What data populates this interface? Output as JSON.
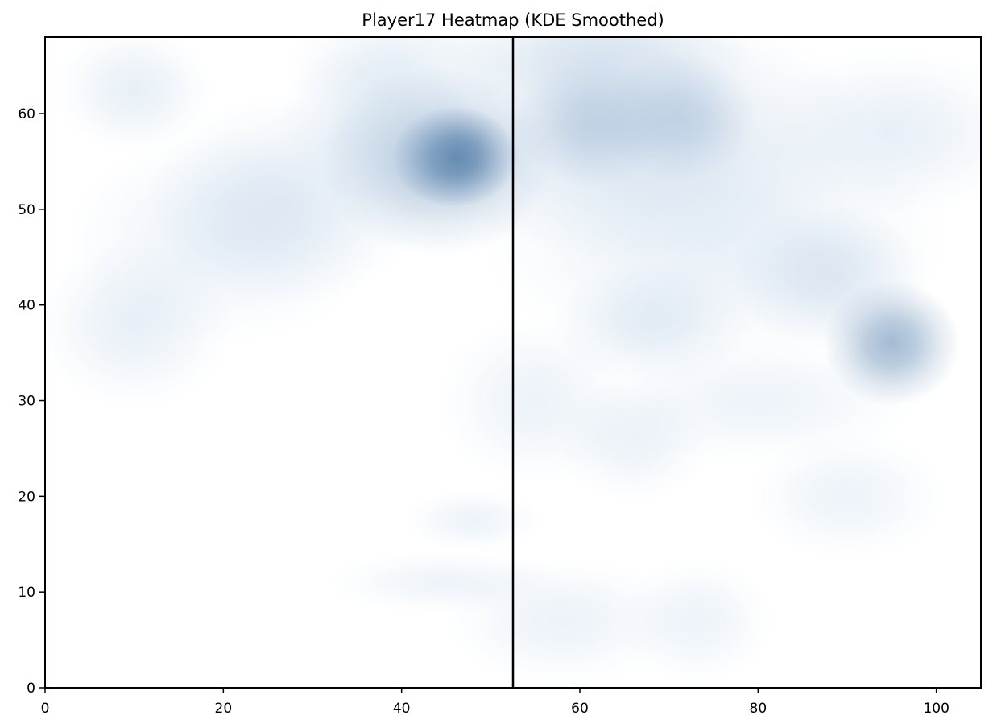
{
  "chart_data": {
    "type": "heatmap",
    "title": "Player17 Heatmap (KDE Smoothed)",
    "xlabel": "",
    "ylabel": "",
    "xlim": [
      0,
      105
    ],
    "ylim": [
      0,
      68
    ],
    "x_ticks": [
      0,
      20,
      40,
      60,
      80,
      100
    ],
    "y_ticks": [
      0,
      10,
      20,
      30,
      40,
      50,
      60
    ],
    "halfway_line_x": 52.5,
    "grid": false,
    "colormap": "Blues",
    "peak_color": "#2a5a8f",
    "low_color": "#f3f8fd",
    "density_hotspots": [
      {
        "x": 46,
        "y": 55.5,
        "sx": 3.2,
        "sy": 2.4,
        "w": 1.0
      },
      {
        "x": 44,
        "y": 55,
        "sx": 6.0,
        "sy": 4.5,
        "w": 0.45
      },
      {
        "x": 95,
        "y": 36,
        "sx": 3.5,
        "sy": 3.0,
        "w": 0.55
      },
      {
        "x": 61.5,
        "y": 59,
        "sx": 4.0,
        "sy": 3.0,
        "w": 0.33
      },
      {
        "x": 71,
        "y": 59.5,
        "sx": 4.0,
        "sy": 3.0,
        "w": 0.33
      },
      {
        "x": 66,
        "y": 58,
        "sx": 12.0,
        "sy": 6.0,
        "w": 0.2
      },
      {
        "x": 62,
        "y": 66,
        "sx": 8.0,
        "sy": 3.0,
        "w": 0.18
      },
      {
        "x": 88,
        "y": 43,
        "sx": 5.0,
        "sy": 3.5,
        "w": 0.16
      },
      {
        "x": 68,
        "y": 38,
        "sx": 5.0,
        "sy": 3.0,
        "w": 0.12
      },
      {
        "x": 27,
        "y": 51,
        "sx": 7.0,
        "sy": 5.0,
        "w": 0.13
      },
      {
        "x": 37,
        "y": 59,
        "sx": 5.0,
        "sy": 4.0,
        "w": 0.12
      },
      {
        "x": 10,
        "y": 62.5,
        "sx": 4.0,
        "sy": 3.0,
        "w": 0.1
      },
      {
        "x": 10,
        "y": 38,
        "sx": 5.0,
        "sy": 4.0,
        "w": 0.1
      },
      {
        "x": 20,
        "y": 47,
        "sx": 8.0,
        "sy": 5.0,
        "w": 0.08
      },
      {
        "x": 75,
        "y": 47,
        "sx": 12.0,
        "sy": 6.0,
        "w": 0.1
      },
      {
        "x": 95,
        "y": 58,
        "sx": 7.0,
        "sy": 4.0,
        "w": 0.1
      },
      {
        "x": 66,
        "y": 26,
        "sx": 4.0,
        "sy": 3.0,
        "w": 0.07
      },
      {
        "x": 58,
        "y": 7,
        "sx": 6.0,
        "sy": 3.0,
        "w": 0.06
      },
      {
        "x": 73,
        "y": 7,
        "sx": 4.0,
        "sy": 3.0,
        "w": 0.05
      },
      {
        "x": 48,
        "y": 17.5,
        "sx": 3.5,
        "sy": 1.5,
        "w": 0.05
      },
      {
        "x": 45,
        "y": 11,
        "sx": 6.0,
        "sy": 1.5,
        "w": 0.04
      },
      {
        "x": 90,
        "y": 20,
        "sx": 5.0,
        "sy": 3.0,
        "w": 0.05
      },
      {
        "x": 55,
        "y": 30,
        "sx": 5.0,
        "sy": 4.0,
        "w": 0.06
      },
      {
        "x": 80,
        "y": 30,
        "sx": 8.0,
        "sy": 3.0,
        "w": 0.05
      },
      {
        "x": 40,
        "y": 65,
        "sx": 6.0,
        "sy": 3.0,
        "w": 0.08
      }
    ]
  }
}
